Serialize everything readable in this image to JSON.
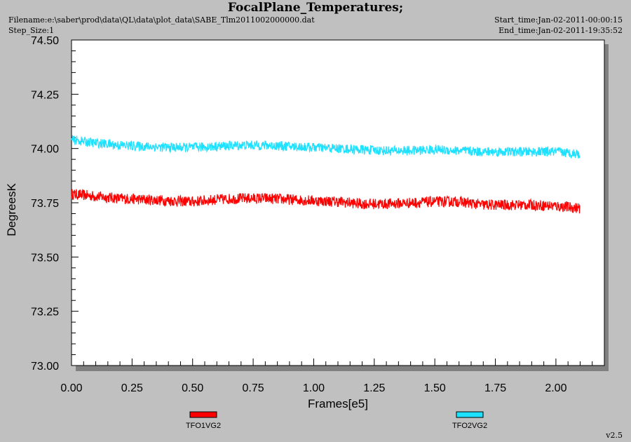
{
  "header": {
    "title": "FocalPlane_Temperatures;",
    "filename": "Filename:e:\\saber\\prod\\data\\QL\\data\\plot_data\\SABE_Tlm2011002000000.dat",
    "step_size": "Step_Size:1",
    "start_time": "Start_time:Jan-02-2011-00:00:15",
    "end_time": "End_time:Jan-02-2011-19:35:52",
    "version": "v2.5"
  },
  "colors": {
    "background": "#c0c0c0",
    "plot_area": "#ffffff",
    "tfo1": "#ff0000",
    "tfo2": "#1ee0ff"
  },
  "chart_data": {
    "type": "line",
    "title": "FocalPlane_Temperatures;",
    "xlabel": "Frames[e5]",
    "ylabel": "DegreesK",
    "xlim": [
      0,
      2.2
    ],
    "ylim": [
      73.0,
      74.5
    ],
    "xticks": [
      "0.00",
      "0.25",
      "0.50",
      "0.75",
      "1.00",
      "1.25",
      "1.50",
      "1.75",
      "2.00"
    ],
    "yticks": [
      "73.00",
      "73.25",
      "73.50",
      "73.75",
      "74.00",
      "74.25",
      "74.50"
    ],
    "grid": false,
    "legend_position": "bottom",
    "series": [
      {
        "name": "TFO1VG2",
        "color": "#ff0000",
        "x": [
          0,
          0.1,
          0.2,
          0.3,
          0.4,
          0.5,
          0.6,
          0.7,
          0.8,
          0.9,
          1.0,
          1.1,
          1.2,
          1.3,
          1.4,
          1.5,
          1.6,
          1.7,
          1.8,
          1.9,
          2.0,
          2.1
        ],
        "y": [
          73.79,
          73.78,
          73.77,
          73.765,
          73.76,
          73.755,
          73.765,
          73.77,
          73.77,
          73.765,
          73.76,
          73.755,
          73.745,
          73.745,
          73.75,
          73.755,
          73.755,
          73.74,
          73.74,
          73.74,
          73.735,
          73.725
        ],
        "noise": 0.025
      },
      {
        "name": "TFO2VG2",
        "color": "#1ee0ff",
        "x": [
          0,
          0.1,
          0.2,
          0.3,
          0.4,
          0.5,
          0.6,
          0.7,
          0.8,
          0.9,
          1.0,
          1.1,
          1.2,
          1.3,
          1.4,
          1.5,
          1.6,
          1.7,
          1.8,
          1.9,
          2.0,
          2.1
        ],
        "y": [
          74.04,
          74.025,
          74.015,
          74.01,
          74.005,
          74.005,
          74.01,
          74.015,
          74.015,
          74.01,
          74.005,
          74.0,
          73.995,
          73.99,
          73.99,
          73.995,
          73.99,
          73.985,
          73.985,
          73.985,
          73.985,
          73.975
        ],
        "noise": 0.022
      }
    ]
  }
}
